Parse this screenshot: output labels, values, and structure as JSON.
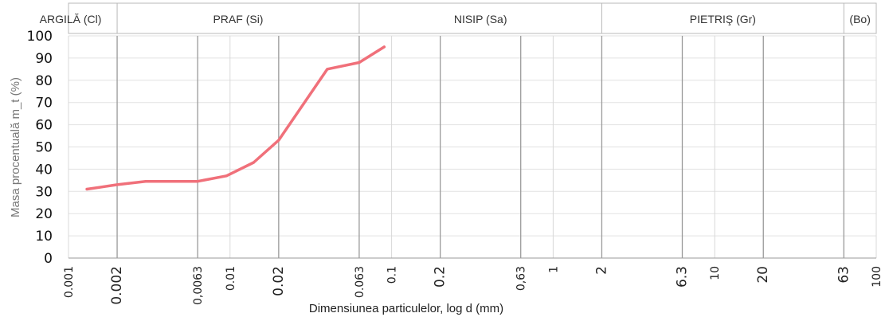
{
  "chart_data": {
    "type": "line",
    "x_scale": "log",
    "title": "",
    "xlabel": "Dimensiunea particulelor, log d (mm)",
    "ylabel": "Masa procentuală m_t (%)",
    "ylim": [
      0,
      100
    ],
    "xlim": [
      0.001,
      100
    ],
    "y_ticks": [
      "0",
      "10",
      "20",
      "30",
      "40",
      "50",
      "60",
      "70",
      "80",
      "90",
      "100"
    ],
    "x_ticks": [
      {
        "value": 0.001,
        "label": "0.001"
      },
      {
        "value": 0.002,
        "label": "0.002"
      },
      {
        "value": 0.0063,
        "label": "0,0063"
      },
      {
        "value": 0.01,
        "label": "0.01"
      },
      {
        "value": 0.02,
        "label": "0.02"
      },
      {
        "value": 0.063,
        "label": "0.063"
      },
      {
        "value": 0.1,
        "label": "0.1"
      },
      {
        "value": 0.2,
        "label": "0.2"
      },
      {
        "value": 0.63,
        "label": "0,63"
      },
      {
        "value": 1,
        "label": "1"
      },
      {
        "value": 2,
        "label": "2"
      },
      {
        "value": 6.3,
        "label": "6.3"
      },
      {
        "value": 10,
        "label": "10"
      },
      {
        "value": 20,
        "label": "20"
      },
      {
        "value": 63,
        "label": "63"
      },
      {
        "value": 100,
        "label": "100"
      }
    ],
    "soil_classes": [
      {
        "label": "ARGILĂ (Cl)",
        "from": 0.001,
        "to": 0.002
      },
      {
        "label": "PRAF (Si)",
        "from": 0.002,
        "to": 0.063
      },
      {
        "label": "NISIP (Sa)",
        "from": 0.063,
        "to": 2
      },
      {
        "label": "PIETRIŞ (Gr)",
        "from": 2,
        "to": 63
      },
      {
        "label": "(Bo)",
        "from": 63,
        "to": 100
      }
    ],
    "series": [
      {
        "color": "#f0707a",
        "x": [
          0.0013,
          0.002,
          0.003,
          0.0063,
          0.0095,
          0.014,
          0.02,
          0.04,
          0.063,
          0.09
        ],
        "y": [
          31,
          33,
          34.5,
          34.5,
          37,
          43,
          53,
          85,
          88,
          95
        ]
      }
    ],
    "grid": true
  }
}
